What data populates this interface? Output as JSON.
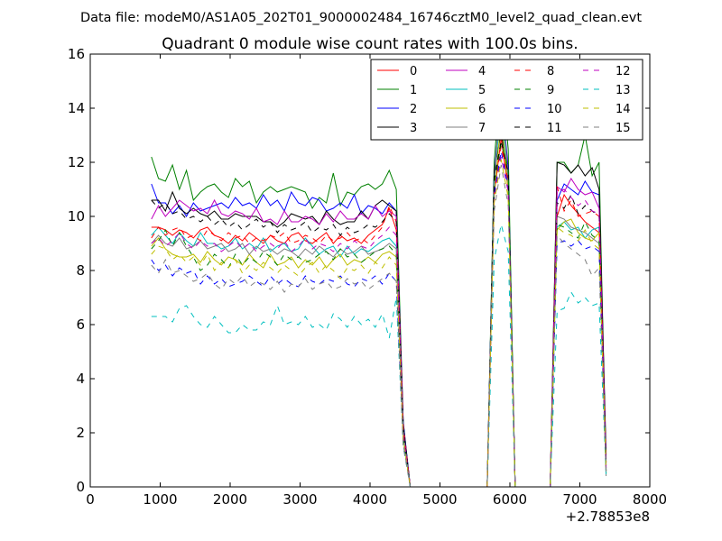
{
  "chart_data": {
    "type": "line",
    "suptitle": "Data file: modeM0/AS1A05_202T01_9000002484_16746cztM0_level2_quad_clean.evt",
    "title": "Quadrant 0 module wise count rates with 100.0s bins.",
    "xlabel": "",
    "ylabel": "",
    "x_offset_label": "+2.78853e8",
    "xlim": [
      0,
      8000
    ],
    "ylim": [
      0,
      16
    ],
    "x_ticks": [
      0,
      1000,
      2000,
      3000,
      4000,
      5000,
      6000,
      7000,
      8000
    ],
    "y_ticks": [
      0,
      2,
      4,
      6,
      8,
      10,
      12,
      14,
      16
    ],
    "x": [
      875,
      975,
      1075,
      1175,
      1275,
      1375,
      1475,
      1575,
      1675,
      1775,
      1875,
      1975,
      2075,
      2175,
      2275,
      2375,
      2475,
      2575,
      2675,
      2775,
      2875,
      2975,
      3075,
      3175,
      3275,
      3375,
      3475,
      3575,
      3675,
      3775,
      3875,
      3975,
      4075,
      4175,
      4275,
      4375,
      4475,
      4575,
      4675,
      4775,
      4875,
      4975,
      5075,
      5175,
      5275,
      5375,
      5475,
      5575,
      5675,
      5775,
      5875,
      5975,
      6075,
      6175,
      6275,
      6375,
      6475,
      6575,
      6675,
      6775,
      6875,
      6975,
      7075,
      7175,
      7275,
      7375
    ],
    "legend_position": "top-right",
    "series": [
      {
        "name": "0",
        "color": "#ff0000",
        "dash": "solid",
        "values": [
          9.6,
          9.6,
          9.5,
          9.3,
          9.5,
          9.4,
          9.2,
          9.5,
          9.6,
          9.3,
          9.2,
          9.0,
          9.3,
          9.1,
          9.4,
          9.2,
          9.0,
          9.3,
          9.1,
          9.0,
          9.3,
          9.4,
          9.1,
          9.0,
          9.2,
          9.4,
          9.0,
          9.3,
          9.1,
          9.2,
          9.0,
          9.3,
          9.5,
          9.7,
          10.3,
          9.5,
          2.2,
          0,
          0,
          0,
          0,
          0,
          0,
          0,
          0,
          0,
          0,
          0,
          0,
          10.8,
          12.9,
          11.0,
          0,
          0,
          0,
          0,
          0,
          0,
          10.0,
          10.8,
          10.4,
          10.1,
          9.8,
          9.6,
          9.4,
          0.6
        ]
      },
      {
        "name": "1",
        "color": "#008000",
        "dash": "solid",
        "values": [
          12.2,
          11.4,
          11.3,
          11.9,
          11.0,
          11.7,
          10.6,
          10.9,
          11.1,
          11.2,
          10.9,
          10.7,
          11.4,
          11.1,
          11.3,
          10.5,
          10.9,
          11.1,
          10.9,
          11.0,
          11.1,
          11.0,
          10.9,
          10.3,
          10.7,
          10.5,
          11.6,
          10.4,
          10.9,
          10.8,
          11.1,
          11.2,
          11.0,
          11.2,
          11.7,
          11.0,
          2.4,
          0,
          0,
          0,
          0,
          0,
          0,
          0,
          0,
          0,
          0,
          0,
          0,
          12.0,
          15.4,
          12.5,
          0,
          0,
          0,
          0,
          0,
          0,
          12.0,
          12.0,
          11.6,
          11.9,
          13.0,
          11.5,
          12.0,
          0.5
        ]
      },
      {
        "name": "2",
        "color": "#0000ff",
        "dash": "solid",
        "values": [
          11.2,
          10.5,
          10.5,
          10.1,
          10.4,
          10.0,
          10.5,
          10.2,
          10.3,
          10.4,
          10.5,
          10.3,
          10.7,
          10.4,
          10.5,
          10.3,
          10.8,
          10.4,
          10.6,
          10.2,
          10.9,
          10.5,
          10.4,
          10.7,
          10.6,
          10.2,
          10.3,
          10.5,
          10.3,
          10.8,
          10.1,
          10.4,
          10.3,
          10.1,
          10.5,
          10.2,
          2.4,
          0,
          0,
          0,
          0,
          0,
          0,
          0,
          0,
          0,
          0,
          0,
          0,
          11.5,
          14.6,
          11.8,
          0,
          0,
          0,
          0,
          0,
          0,
          10.6,
          11.2,
          11.0,
          10.8,
          11.3,
          10.9,
          10.8,
          0.9
        ]
      },
      {
        "name": "3",
        "color": "#000000",
        "dash": "solid",
        "values": [
          10.6,
          10.6,
          10.2,
          10.9,
          10.3,
          10.1,
          10.3,
          10.1,
          10.0,
          10.2,
          9.9,
          9.9,
          10.1,
          10.0,
          10.0,
          10.0,
          9.8,
          9.8,
          9.6,
          9.8,
          10.1,
          10.0,
          9.9,
          10.0,
          9.7,
          10.2,
          9.9,
          9.7,
          9.8,
          9.8,
          10.2,
          9.9,
          10.4,
          10.6,
          10.4,
          10.2,
          2.3,
          0,
          0,
          0,
          0,
          0,
          0,
          0,
          0,
          0,
          0,
          0,
          0,
          11.7,
          13.1,
          11.5,
          0,
          0,
          0,
          0,
          0,
          0,
          12.0,
          11.9,
          11.6,
          11.9,
          11.5,
          11.8,
          11.0,
          1.2
        ]
      },
      {
        "name": "4",
        "color": "#bf00bf",
        "dash": "solid",
        "values": [
          9.9,
          10.4,
          10.0,
          10.3,
          10.6,
          10.4,
          10.2,
          10.3,
          10.1,
          10.6,
          10.1,
          10.0,
          10.2,
          10.1,
          9.9,
          10.3,
          9.8,
          9.9,
          9.7,
          10.2,
          9.8,
          9.8,
          10.0,
          9.9,
          9.7,
          10.1,
          9.8,
          10.2,
          9.9,
          9.9,
          10.1,
          9.9,
          10.4,
          10.0,
          10.2,
          10.0,
          2.1,
          0,
          0,
          0,
          0,
          0,
          0,
          0,
          0,
          0,
          0,
          0,
          0,
          11.2,
          14.7,
          11.5,
          0,
          0,
          0,
          0,
          0,
          0,
          11.1,
          10.9,
          11.4,
          11.0,
          10.8,
          10.9,
          10.3,
          0.7
        ]
      },
      {
        "name": "5",
        "color": "#00bfbf",
        "dash": "solid",
        "values": [
          9.3,
          9.6,
          9.3,
          9.0,
          9.4,
          9.1,
          8.9,
          9.4,
          9.0,
          9.0,
          8.8,
          8.9,
          9.2,
          8.8,
          9.0,
          8.8,
          9.2,
          8.7,
          8.9,
          9.0,
          8.7,
          8.8,
          9.2,
          8.9,
          8.6,
          8.8,
          8.9,
          8.5,
          8.9,
          8.6,
          8.8,
          8.7,
          8.9,
          9.1,
          9.2,
          8.9,
          1.9,
          0,
          0,
          0,
          0,
          0,
          0,
          0,
          0,
          0,
          0,
          0,
          0,
          11.3,
          14.1,
          11.4,
          0,
          0,
          0,
          0,
          0,
          0,
          9.6,
          9.8,
          9.5,
          9.6,
          9.2,
          9.5,
          9.6,
          0.6
        ]
      },
      {
        "name": "6",
        "color": "#bfbf00",
        "dash": "solid",
        "values": [
          8.9,
          9.2,
          8.8,
          8.6,
          8.5,
          8.5,
          8.6,
          8.3,
          8.7,
          8.4,
          8.2,
          8.5,
          8.4,
          8.2,
          8.6,
          8.3,
          8.1,
          8.6,
          8.2,
          8.3,
          8.5,
          8.1,
          8.4,
          8.2,
          8.5,
          8.1,
          8.4,
          8.6,
          8.2,
          8.4,
          8.3,
          8.5,
          8.3,
          8.6,
          8.7,
          8.5,
          1.8,
          0,
          0,
          0,
          0,
          0,
          0,
          0,
          0,
          0,
          0,
          0,
          0,
          10.7,
          13.7,
          10.9,
          0,
          0,
          0,
          0,
          0,
          0,
          9.5,
          9.8,
          9.9,
          9.4,
          9.2,
          9.1,
          9.4,
          0.5
        ]
      },
      {
        "name": "7",
        "color": "#808080",
        "dash": "solid",
        "values": [
          9.0,
          9.3,
          9.0,
          8.9,
          9.2,
          8.8,
          8.9,
          9.1,
          8.8,
          8.9,
          9.0,
          8.7,
          8.8,
          9.0,
          8.6,
          8.9,
          8.7,
          8.8,
          8.6,
          8.8,
          8.7,
          8.5,
          8.8,
          8.6,
          8.9,
          8.7,
          8.5,
          8.8,
          8.6,
          8.7,
          8.9,
          8.6,
          8.7,
          8.8,
          9.0,
          8.8,
          2.0,
          0,
          0,
          0,
          0,
          0,
          0,
          0,
          0,
          0,
          0,
          0,
          0,
          11.0,
          15.3,
          11.2,
          0,
          0,
          0,
          0,
          0,
          0,
          10.0,
          9.9,
          9.6,
          9.5,
          9.4,
          9.2,
          9.0,
          0.4
        ]
      },
      {
        "name": "8",
        "color": "#ff0000",
        "dash": "dashed",
        "values": [
          9.2,
          9.6,
          9.3,
          9.5,
          9.6,
          9.2,
          9.3,
          9.1,
          9.5,
          9.3,
          9.1,
          9.4,
          9.2,
          9.3,
          9.0,
          9.2,
          9.1,
          9.3,
          9.2,
          9.4,
          9.0,
          9.1,
          9.3,
          9.2,
          9.0,
          9.3,
          9.1,
          9.2,
          9.4,
          9.1,
          9.2,
          9.0,
          9.3,
          9.6,
          10.4,
          9.8,
          2.3,
          0,
          0,
          0,
          0,
          0,
          0,
          0,
          0,
          0,
          0,
          0,
          0,
          10.9,
          12.6,
          11.3,
          0,
          0,
          0,
          0,
          0,
          0,
          11.1,
          10.2,
          10.6,
          10.0,
          10.1,
          10.2,
          10.0,
          0.9
        ]
      },
      {
        "name": "9",
        "color": "#008000",
        "dash": "dashed",
        "values": [
          8.8,
          9.1,
          9.5,
          8.9,
          9.4,
          8.9,
          8.5,
          8.0,
          8.2,
          8.6,
          8.4,
          8.1,
          8.6,
          8.2,
          8.5,
          8.3,
          8.7,
          8.5,
          8.2,
          8.6,
          8.4,
          8.5,
          8.3,
          8.4,
          8.6,
          8.7,
          8.4,
          8.8,
          8.5,
          8.6,
          8.3,
          8.5,
          8.7,
          8.8,
          8.9,
          8.6,
          1.8,
          0,
          0,
          0,
          0,
          0,
          0,
          0,
          0,
          0,
          0,
          0,
          0,
          11.2,
          12.7,
          11.8,
          0,
          0,
          0,
          0,
          0,
          0,
          9.7,
          9.6,
          9.4,
          9.2,
          9.8,
          9.3,
          9.1,
          0.6
        ]
      },
      {
        "name": "10",
        "color": "#0000ff",
        "dash": "dashed",
        "values": [
          8.4,
          8.0,
          8.2,
          7.8,
          8.1,
          7.9,
          8.0,
          7.5,
          7.8,
          7.5,
          7.7,
          7.4,
          7.5,
          7.6,
          7.8,
          7.6,
          7.4,
          7.8,
          7.5,
          7.7,
          7.5,
          7.4,
          7.8,
          7.6,
          7.5,
          7.7,
          7.6,
          7.8,
          7.5,
          7.4,
          7.7,
          7.6,
          7.8,
          7.5,
          7.9,
          7.6,
          1.6,
          0,
          0,
          0,
          0,
          0,
          0,
          0,
          0,
          0,
          0,
          0,
          0,
          10.8,
          12.4,
          11.1,
          0,
          0,
          0,
          0,
          0,
          0,
          9.0,
          9.1,
          8.9,
          9.1,
          8.8,
          8.9,
          8.7,
          0.8
        ]
      },
      {
        "name": "11",
        "color": "#000000",
        "dash": "dashed",
        "values": [
          10.6,
          10.3,
          10.5,
          10.1,
          10.2,
          9.9,
          10.0,
          9.8,
          10.0,
          9.7,
          9.9,
          9.6,
          9.8,
          9.5,
          9.7,
          9.9,
          9.6,
          9.8,
          9.4,
          9.7,
          9.5,
          9.6,
          9.8,
          9.4,
          9.6,
          9.5,
          9.7,
          9.3,
          9.6,
          9.4,
          9.5,
          9.7,
          9.6,
          9.8,
          10.1,
          9.8,
          2.2,
          0,
          0,
          0,
          0,
          0,
          0,
          0,
          0,
          0,
          0,
          0,
          0,
          11.4,
          12.8,
          11.6,
          0,
          0,
          0,
          0,
          0,
          0,
          10.5,
          10.3,
          10.8,
          10.1,
          10.4,
          10.2,
          10.0,
          1.0
        ]
      },
      {
        "name": "12",
        "color": "#bf00bf",
        "dash": "dashed",
        "values": [
          9.0,
          9.2,
          8.9,
          9.1,
          9.4,
          9.0,
          8.8,
          9.1,
          8.9,
          9.0,
          8.7,
          8.9,
          9.1,
          8.8,
          9.0,
          8.7,
          8.9,
          9.0,
          8.8,
          9.1,
          8.7,
          8.9,
          9.2,
          8.8,
          9.0,
          8.9,
          8.7,
          9.0,
          8.8,
          9.1,
          8.9,
          8.8,
          9.1,
          9.3,
          9.6,
          9.3,
          2.0,
          0,
          0,
          0,
          0,
          0,
          0,
          0,
          0,
          0,
          0,
          0,
          0,
          10.6,
          12.2,
          10.9,
          0,
          0,
          0,
          0,
          0,
          0,
          10.9,
          11.0,
          10.7,
          10.4,
          10.6,
          10.2,
          10.1,
          0.7
        ]
      },
      {
        "name": "13",
        "color": "#00bfbf",
        "dash": "dashed",
        "values": [
          6.3,
          6.3,
          6.3,
          6.1,
          6.6,
          6.7,
          6.3,
          6.0,
          5.9,
          6.3,
          6.0,
          5.7,
          5.7,
          6.0,
          5.8,
          5.8,
          6.1,
          6.0,
          6.7,
          6.0,
          6.1,
          6.0,
          6.3,
          5.9,
          6.0,
          5.8,
          6.4,
          6.2,
          5.9,
          6.3,
          6.0,
          6.2,
          5.9,
          6.4,
          5.5,
          7.0,
          1.5,
          0,
          0,
          0,
          0,
          0,
          0,
          0,
          0,
          0,
          0,
          0,
          0,
          8.4,
          9.7,
          8.7,
          0,
          0,
          0,
          0,
          0,
          0,
          6.5,
          6.6,
          7.2,
          6.8,
          7.0,
          6.7,
          6.8,
          0.4
        ]
      },
      {
        "name": "14",
        "color": "#bfbf00",
        "dash": "dashed",
        "values": [
          8.6,
          8.9,
          8.8,
          8.4,
          8.6,
          8.3,
          8.5,
          8.2,
          8.6,
          8.0,
          8.3,
          8.1,
          8.4,
          7.9,
          8.2,
          8.0,
          8.3,
          8.1,
          7.9,
          8.2,
          8.0,
          7.8,
          8.1,
          8.3,
          7.9,
          8.2,
          8.0,
          7.7,
          8.1,
          8.0,
          8.2,
          7.9,
          8.3,
          8.1,
          8.5,
          8.2,
          1.7,
          0,
          0,
          0,
          0,
          0,
          0,
          0,
          0,
          0,
          0,
          0,
          0,
          10.5,
          12.1,
          10.7,
          0,
          0,
          0,
          0,
          0,
          0,
          9.6,
          9.4,
          9.3,
          9.1,
          9.5,
          9.0,
          8.8,
          0.6
        ]
      },
      {
        "name": "15",
        "color": "#808080",
        "dash": "dashed",
        "values": [
          8.2,
          7.9,
          8.4,
          7.9,
          8.0,
          7.8,
          7.6,
          7.7,
          7.9,
          7.5,
          7.3,
          7.7,
          7.5,
          7.8,
          7.4,
          7.6,
          7.5,
          7.3,
          7.6,
          7.2,
          7.5,
          7.4,
          7.7,
          7.3,
          7.5,
          7.6,
          7.3,
          7.4,
          7.7,
          7.5,
          7.6,
          7.3,
          7.5,
          7.7,
          7.9,
          7.6,
          1.5,
          0,
          0,
          0,
          0,
          0,
          0,
          0,
          0,
          0,
          0,
          0,
          0,
          10.2,
          11.9,
          10.4,
          0,
          0,
          0,
          0,
          0,
          0,
          9.3,
          9.0,
          8.8,
          8.6,
          8.4,
          7.8,
          8.1,
          0.5
        ]
      }
    ]
  }
}
